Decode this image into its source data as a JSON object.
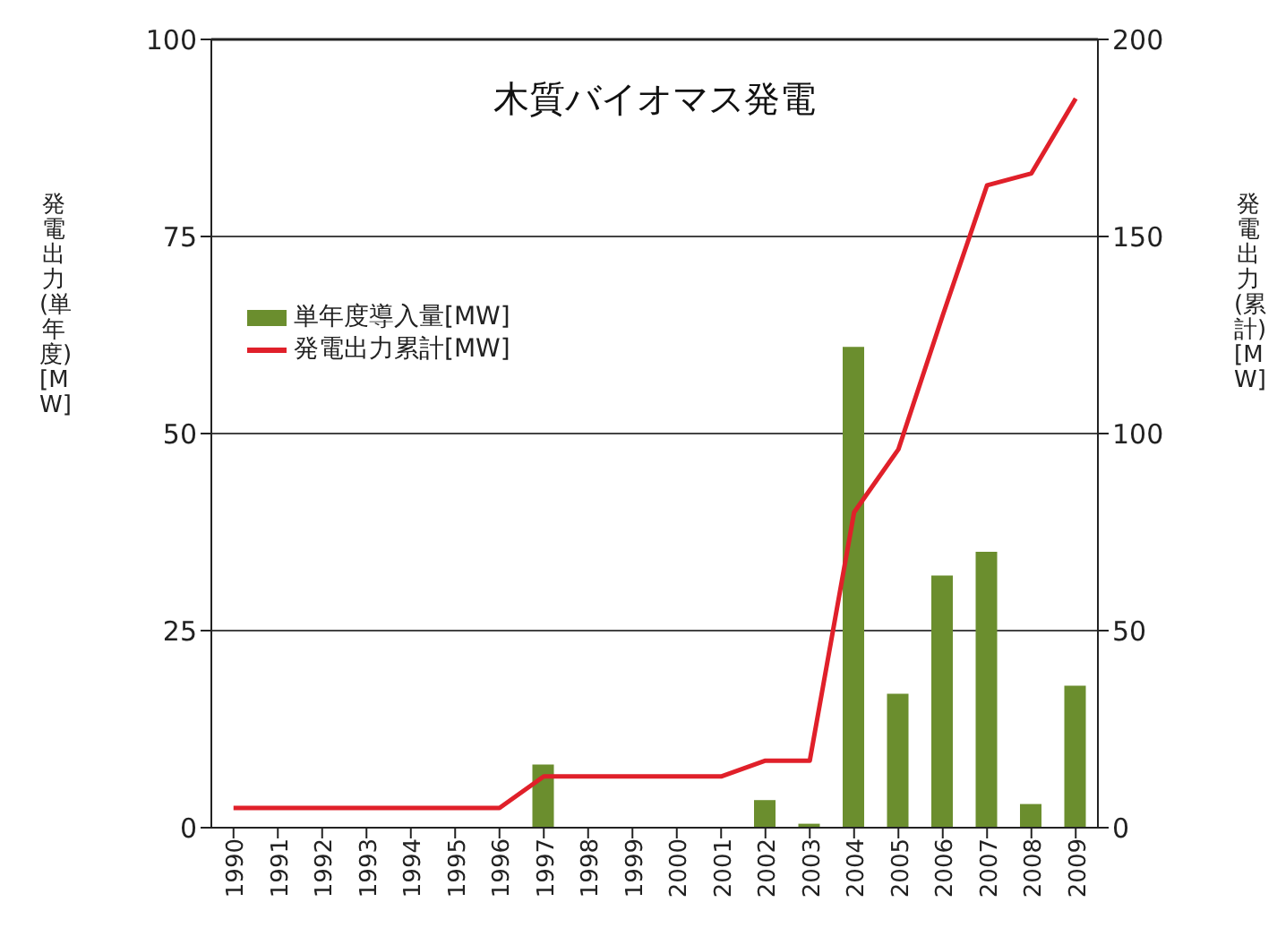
{
  "chart_data": {
    "type": "bar",
    "title": "木質バイオマス発電",
    "categories": [
      "1990",
      "1991",
      "1992",
      "1993",
      "1994",
      "1995",
      "1996",
      "1997",
      "1998",
      "1999",
      "2000",
      "2001",
      "2002",
      "2003",
      "2004",
      "2005",
      "2006",
      "2007",
      "2008",
      "2009"
    ],
    "series": [
      {
        "name": "単年度導入量[MW]",
        "color": "#6b8e2e",
        "values": [
          null,
          null,
          null,
          null,
          null,
          null,
          null,
          8,
          null,
          null,
          null,
          null,
          3.5,
          0.5,
          61,
          17,
          32,
          35,
          3,
          18
        ]
      },
      {
        "name": "発電出力累計[MW]",
        "type": "line",
        "axis": "y2",
        "color": "#e0202a",
        "values": [
          5,
          5,
          5,
          5,
          5,
          5,
          5,
          13,
          13,
          13,
          13,
          13,
          17,
          17,
          80,
          96,
          130,
          163,
          166,
          185
        ]
      }
    ],
    "ylabel": "発電出力(単年度)[MW]",
    "y2label": "発電出力(累計)[MW]",
    "ylim": [
      0,
      100
    ],
    "yticks": [
      0,
      25,
      50,
      75,
      100
    ],
    "y2lim": [
      0,
      200
    ],
    "y2ticks": [
      0,
      50,
      100,
      150,
      200
    ],
    "grid": "y",
    "legend": "top left",
    "marker": "none"
  }
}
